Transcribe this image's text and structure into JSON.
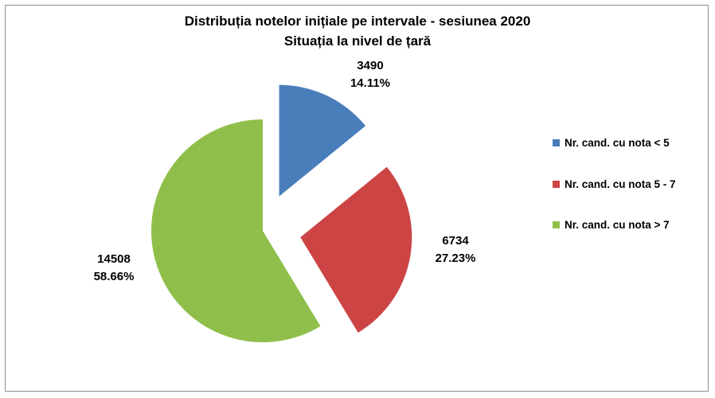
{
  "chart_data": {
    "type": "pie",
    "title": "Distribuția notelor inițiale pe intervale - sesiunea 2020",
    "subtitle": "Situația la nivel de țară",
    "slices": [
      {
        "label": "Nr. cand. cu nota < 5",
        "value": 3490,
        "percent": "14.11%",
        "color": "#4a7ebb"
      },
      {
        "label": "Nr. cand. cu nota 5 - 7",
        "value": 6734,
        "percent": "27.23%",
        "color": "#cc4444"
      },
      {
        "label": "Nr. cand. cu nota > 7",
        "value": 14508,
        "percent": "58.66%",
        "color": "#8fbf4a"
      }
    ],
    "exploded": true,
    "legend_position": "right"
  }
}
